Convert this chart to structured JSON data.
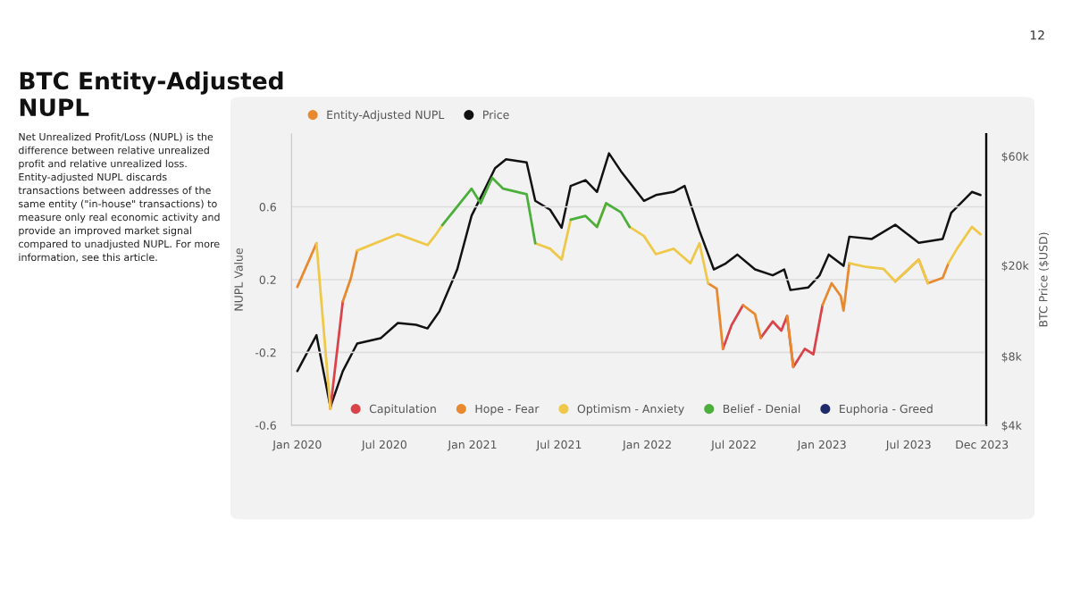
{
  "chart_data": {
    "type": "line",
    "title": "BTC Entity-Adjusted NUPL",
    "ylabel": "NUPL Value",
    "y2label": "BTC Price ($USD)",
    "annotations": [
      "Net Unrealized Profit/Loss (NUPL) is the difference between relative unrealized profit and relative unrealized loss. Entity-adjusted NUPL discards transactions between addresses of the same entity (\"in-house\" transactions) to measure only real economic activity and provide an improved market signal compared to unadjusted NUPL. For more information, see this article.",
      "12"
    ],
    "x": [
      "2020-01-01",
      "2020-02-10",
      "2020-03-10",
      "2020-04-05",
      "2020-04-22",
      "2020-05-05",
      "2020-07-29",
      "2020-09-29",
      "2020-10-17",
      "2020-10-30",
      "2020-12-30",
      "2021-01-18",
      "2021-02-11",
      "2021-03-06",
      "2021-04-24",
      "2021-05-12",
      "2021-06-12",
      "2021-07-06",
      "2021-07-25",
      "2021-08-25",
      "2021-09-18",
      "2021-10-07",
      "2021-11-07",
      "2021-11-25",
      "2021-12-25",
      "2022-01-19",
      "2022-02-25",
      "2022-04-01",
      "2022-04-20",
      "2022-05-08",
      "2022-05-26",
      "2022-06-08",
      "2022-06-26",
      "2022-07-20",
      "2022-08-14",
      "2022-08-26",
      "2022-09-20",
      "2022-10-08",
      "2022-10-20",
      "2022-11-02",
      "2022-11-26",
      "2022-12-14",
      "2023-01-02",
      "2023-01-21",
      "2023-02-09",
      "2023-02-15",
      "2023-02-27",
      "2023-04-03",
      "2023-05-09",
      "2023-06-03",
      "2023-07-22",
      "2023-08-10",
      "2023-09-10",
      "2023-09-22",
      "2023-10-10",
      "2023-11-10",
      "2023-11-28"
    ],
    "series": [
      {
        "name": "Entity-Adjusted NUPL",
        "color": "#e8892f",
        "values": [
          null,
          null,
          null,
          null,
          null,
          null,
          null,
          null,
          null,
          null,
          null,
          null,
          null,
          null,
          null,
          null,
          null,
          null,
          null,
          null,
          null,
          null,
          null,
          null,
          null,
          null,
          null,
          null,
          null,
          null,
          null,
          null,
          null,
          null,
          null,
          null,
          null,
          null,
          null,
          null,
          null,
          null,
          null,
          null,
          null,
          null,
          null,
          null,
          null,
          null,
          null,
          null,
          null,
          null,
          null,
          null,
          null
        ]
      },
      {
        "name": "Price",
        "color": "#111111",
        "axis": "y2",
        "x": [
          "2020-01-01",
          "2020-02-10",
          "2020-03-10",
          "2020-04-05",
          "2020-05-05",
          "2020-06-23",
          "2020-07-29",
          "2020-09-05",
          "2020-09-29",
          "2020-10-24",
          "2020-11-30",
          "2020-12-30",
          "2021-01-30",
          "2021-02-17",
          "2021-03-12",
          "2021-04-24",
          "2021-05-12",
          "2021-06-12",
          "2021-07-06",
          "2021-07-25",
          "2021-08-25",
          "2021-09-18",
          "2021-10-13",
          "2021-11-07",
          "2021-12-25",
          "2022-01-19",
          "2022-02-25",
          "2022-03-20",
          "2022-04-20",
          "2022-05-20",
          "2022-06-14",
          "2022-07-08",
          "2022-08-14",
          "2022-09-20",
          "2022-10-14",
          "2022-10-27",
          "2022-12-03",
          "2022-12-27",
          "2023-01-15",
          "2023-02-15",
          "2023-02-27",
          "2023-04-15",
          "2023-06-03",
          "2023-07-22",
          "2023-09-10",
          "2023-09-28",
          "2023-11-10",
          "2023-11-28"
        ],
        "values": [
          6900,
          9900,
          4800,
          6900,
          9100,
          9600,
          11200,
          11000,
          10600,
          12600,
          19200,
          33000,
          44500,
          53200,
          58200,
          56400,
          38300,
          35000,
          29200,
          44500,
          47200,
          41900,
          61800,
          51600,
          38300,
          40600,
          41900,
          44500,
          28300,
          19200,
          20400,
          22300,
          19200,
          18100,
          19200,
          15600,
          16000,
          18100,
          22300,
          19900,
          26700,
          26100,
          30100,
          25100,
          26100,
          34000,
          41900,
          40600
        ]
      },
      {
        "name": "Capitulation",
        "color": "#d9434a",
        "values": [
          null,
          null,
          -0.51,
          0.08,
          null,
          null,
          null,
          null,
          null,
          null,
          null,
          null,
          null,
          null,
          null,
          null,
          null,
          null,
          null,
          null,
          null,
          null,
          null,
          null,
          null,
          null,
          null,
          null,
          null,
          null,
          null,
          -0.18,
          -0.05,
          0.06,
          null,
          -0.12,
          -0.03,
          -0.08,
          0.0,
          -0.28,
          -0.18,
          -0.21,
          0.06,
          null,
          null,
          null,
          null,
          null,
          null,
          null,
          null,
          null,
          null,
          null,
          null,
          null,
          null
        ]
      },
      {
        "name": "Hope - Fear",
        "color": "#e8892f",
        "values": [
          0.16,
          0.4,
          null,
          0.08,
          0.21,
          0.36,
          null,
          null,
          null,
          null,
          null,
          null,
          null,
          null,
          null,
          null,
          null,
          null,
          null,
          null,
          null,
          null,
          null,
          null,
          null,
          null,
          null,
          null,
          null,
          0.18,
          0.15,
          -0.18,
          null,
          0.06,
          0.01,
          -0.12,
          null,
          null,
          0.0,
          -0.28,
          null,
          null,
          0.06,
          0.18,
          0.11,
          0.03,
          0.29,
          null,
          null,
          0.19,
          0.31,
          0.18,
          0.21,
          0.29,
          null,
          null,
          null
        ]
      },
      {
        "name": "Optimism - Anxiety",
        "color": "#efc84a",
        "values": [
          null,
          0.4,
          -0.51,
          null,
          null,
          0.36,
          0.45,
          0.39,
          0.45,
          0.5,
          null,
          null,
          null,
          null,
          null,
          0.4,
          0.37,
          0.31,
          0.53,
          null,
          0.49,
          0.62,
          null,
          0.49,
          0.44,
          0.34,
          0.37,
          0.29,
          0.4,
          0.18,
          null,
          null,
          null,
          null,
          null,
          null,
          null,
          null,
          null,
          null,
          null,
          null,
          null,
          null,
          null,
          null,
          0.29,
          0.27,
          0.26,
          0.19,
          0.31,
          0.18,
          null,
          0.29,
          0.37,
          0.49,
          0.45
        ]
      },
      {
        "name": "Belief - Denial",
        "color": "#4caf3c",
        "values": [
          null,
          null,
          null,
          null,
          null,
          null,
          null,
          null,
          null,
          0.5,
          0.7,
          0.62,
          0.76,
          0.7,
          0.67,
          0.4,
          null,
          null,
          0.53,
          0.55,
          0.49,
          0.62,
          0.57,
          0.49,
          null,
          null,
          null,
          null,
          null,
          null,
          null,
          null,
          null,
          null,
          null,
          null,
          null,
          null,
          null,
          null,
          null,
          null,
          null,
          null,
          null,
          null,
          null,
          null,
          null,
          null,
          null,
          null,
          null,
          null,
          null,
          null,
          null
        ]
      },
      {
        "name": "Euphoria - Greed",
        "color": "#1f2a6b",
        "values": [
          null,
          null,
          null,
          null,
          null,
          null,
          null,
          null,
          null,
          null,
          null,
          null,
          null,
          null,
          null,
          null,
          null,
          null,
          null,
          null,
          null,
          null,
          null,
          null,
          null,
          null,
          null,
          null,
          null,
          null,
          null,
          null,
          null,
          null,
          null,
          null,
          null,
          null,
          null,
          null,
          null,
          null,
          null,
          null,
          null,
          null,
          null,
          null,
          null,
          null,
          null,
          null,
          null,
          null,
          null,
          null,
          null
        ]
      }
    ],
    "xlim": [
      "2019-12-20",
      "2023-12-10"
    ],
    "xticks": [
      {
        "value": "2020-01-01",
        "label": "Jan 2020"
      },
      {
        "value": "2020-07-01",
        "label": "Jul 2020"
      },
      {
        "value": "2021-01-01",
        "label": "Jan 2021"
      },
      {
        "value": "2021-07-01",
        "label": "Jul 2021"
      },
      {
        "value": "2022-01-01",
        "label": "Jan 2022"
      },
      {
        "value": "2022-07-01",
        "label": "Jul 2022"
      },
      {
        "value": "2023-01-01",
        "label": "Jan 2023"
      },
      {
        "value": "2023-07-01",
        "label": "Jul 2023"
      },
      {
        "value": "2023-12-01",
        "label": "Dec 2023"
      }
    ],
    "ylim": [
      -0.6,
      1.0
    ],
    "yticks": [
      -0.6,
      -0.2,
      0.2,
      0.6
    ],
    "y2lim": [
      4000,
      75000
    ],
    "y2ticks": [
      {
        "value": 4000,
        "label": "$4k"
      },
      {
        "value": 8000,
        "label": "$8k"
      },
      {
        "value": 20000,
        "label": "$20k"
      },
      {
        "value": 60000,
        "label": "$60k"
      }
    ],
    "log": "y2",
    "grid": "y",
    "legend": "top left",
    "line_style": "solid",
    "marker": "none"
  }
}
